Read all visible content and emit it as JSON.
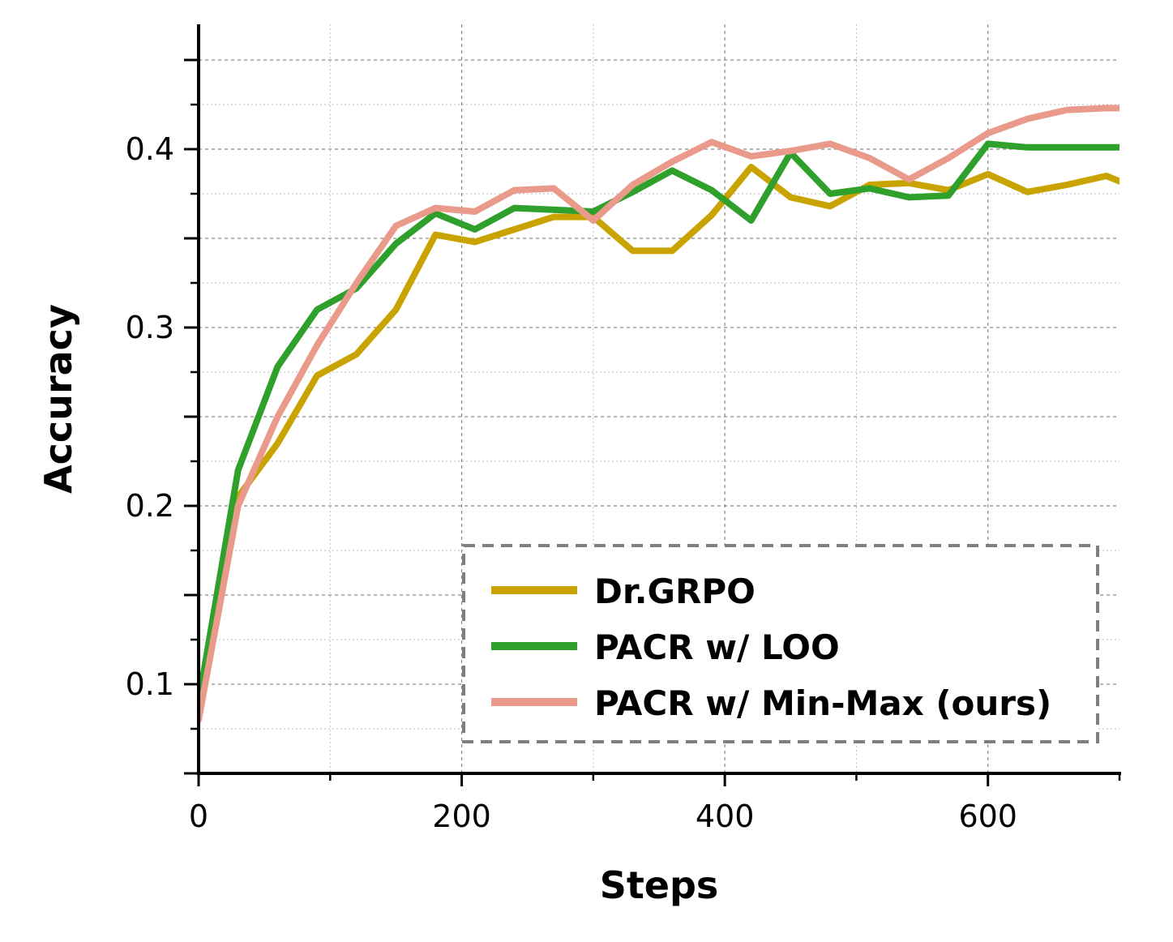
{
  "chart_data": {
    "type": "line",
    "title": "",
    "xlabel": "Steps",
    "ylabel": "Accuracy",
    "xlim": [
      0,
      700
    ],
    "ylim": [
      0.05,
      0.47
    ],
    "xticks": [
      0,
      200,
      400,
      600
    ],
    "xtick_labels": [
      "0",
      "200",
      "400",
      "600"
    ],
    "yticks": [
      0.1,
      0.2,
      0.3,
      0.4
    ],
    "ytick_labels": [
      "0.1",
      "0.2",
      "0.3",
      "0.4"
    ],
    "grid": true,
    "legend_position": "lower-right",
    "x": [
      0,
      30,
      60,
      90,
      120,
      150,
      180,
      210,
      240,
      270,
      300,
      330,
      360,
      390,
      420,
      450,
      480,
      510,
      540,
      570,
      600,
      630,
      660,
      690,
      700
    ],
    "series": [
      {
        "name": "Dr.GRPO",
        "color": "#C9A300",
        "values": [
          0.085,
          0.205,
          0.235,
          0.273,
          0.285,
          0.31,
          0.352,
          0.348,
          0.355,
          0.362,
          0.362,
          0.343,
          0.343,
          0.363,
          0.39,
          0.373,
          0.368,
          0.38,
          0.381,
          0.377,
          0.386,
          0.376,
          0.38,
          0.385,
          0.382
        ]
      },
      {
        "name": "PACR w/ LOO",
        "color": "#2FA02B",
        "values": [
          0.09,
          0.22,
          0.278,
          0.31,
          0.322,
          0.347,
          0.364,
          0.355,
          0.367,
          0.366,
          0.365,
          0.376,
          0.388,
          0.377,
          0.36,
          0.398,
          0.375,
          0.378,
          0.373,
          0.374,
          0.403,
          0.401,
          0.401,
          0.401,
          0.401
        ]
      },
      {
        "name": "PACR w/ Min-Max (ours)",
        "color": "#E99A8A",
        "values": [
          0.08,
          0.2,
          0.25,
          0.29,
          0.325,
          0.357,
          0.367,
          0.365,
          0.377,
          0.378,
          0.36,
          0.38,
          0.393,
          0.404,
          0.396,
          0.399,
          0.403,
          0.395,
          0.383,
          0.395,
          0.409,
          0.417,
          0.422,
          0.423,
          0.423
        ]
      }
    ]
  }
}
